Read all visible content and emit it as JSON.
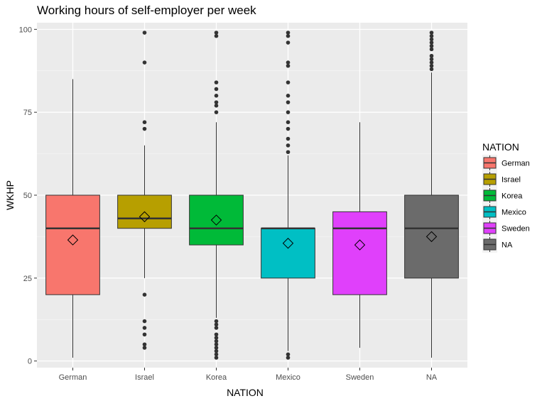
{
  "chart_data": {
    "type": "boxplot",
    "title": "Working hours of self-employer per week",
    "xlabel": "NATION",
    "ylabel": "WKHP",
    "ylim": [
      -2,
      102
    ],
    "yticks": [
      0,
      25,
      50,
      75,
      100
    ],
    "grid": true,
    "legend": {
      "title": "NATION",
      "position": "right"
    },
    "categories": [
      "German",
      "Israel",
      "Korea",
      "Mexico",
      "Sweden",
      "NA"
    ],
    "series": [
      {
        "name": "German",
        "color": "#F8766D",
        "whisker_low": 1,
        "q1": 20,
        "median": 40,
        "q3": 50,
        "whisker_high": 85,
        "mean": 36.5,
        "outliers": []
      },
      {
        "name": "Israel",
        "color": "#B79F00",
        "whisker_low": 25,
        "q1": 40,
        "median": 43,
        "q3": 50,
        "whisker_high": 65,
        "mean": 43.5,
        "outliers": [
          4,
          5,
          8,
          10,
          12,
          20,
          70,
          72,
          90,
          99
        ]
      },
      {
        "name": "Korea",
        "color": "#00BA38",
        "whisker_low": 13,
        "q1": 35,
        "median": 40,
        "q3": 50,
        "whisker_high": 72,
        "mean": 42.5,
        "outliers": [
          1,
          2,
          3,
          4,
          5,
          6,
          7,
          8,
          10,
          11,
          12,
          75,
          77,
          78,
          80,
          82,
          84,
          98,
          99
        ]
      },
      {
        "name": "Mexico",
        "color": "#00BFC4",
        "whisker_low": 3,
        "q1": 25,
        "median": 40,
        "q3": 40,
        "whisker_high": 62,
        "mean": 35.5,
        "outliers": [
          1,
          2,
          63,
          65,
          67,
          70,
          72,
          75,
          78,
          80,
          84,
          89,
          90,
          96,
          98,
          99
        ]
      },
      {
        "name": "Sweden",
        "color": "#E040FB",
        "whisker_low": 4,
        "q1": 20,
        "median": 40,
        "q3": 45,
        "whisker_high": 72,
        "mean": 35,
        "outliers": []
      },
      {
        "name": "NA",
        "color": "#6B6B6B",
        "whisker_low": 1,
        "q1": 25,
        "median": 40,
        "q3": 50,
        "whisker_high": 87,
        "mean": 37.5,
        "outliers": [
          88,
          89,
          90,
          91,
          92,
          94,
          95,
          96,
          97,
          98,
          99
        ]
      }
    ]
  }
}
